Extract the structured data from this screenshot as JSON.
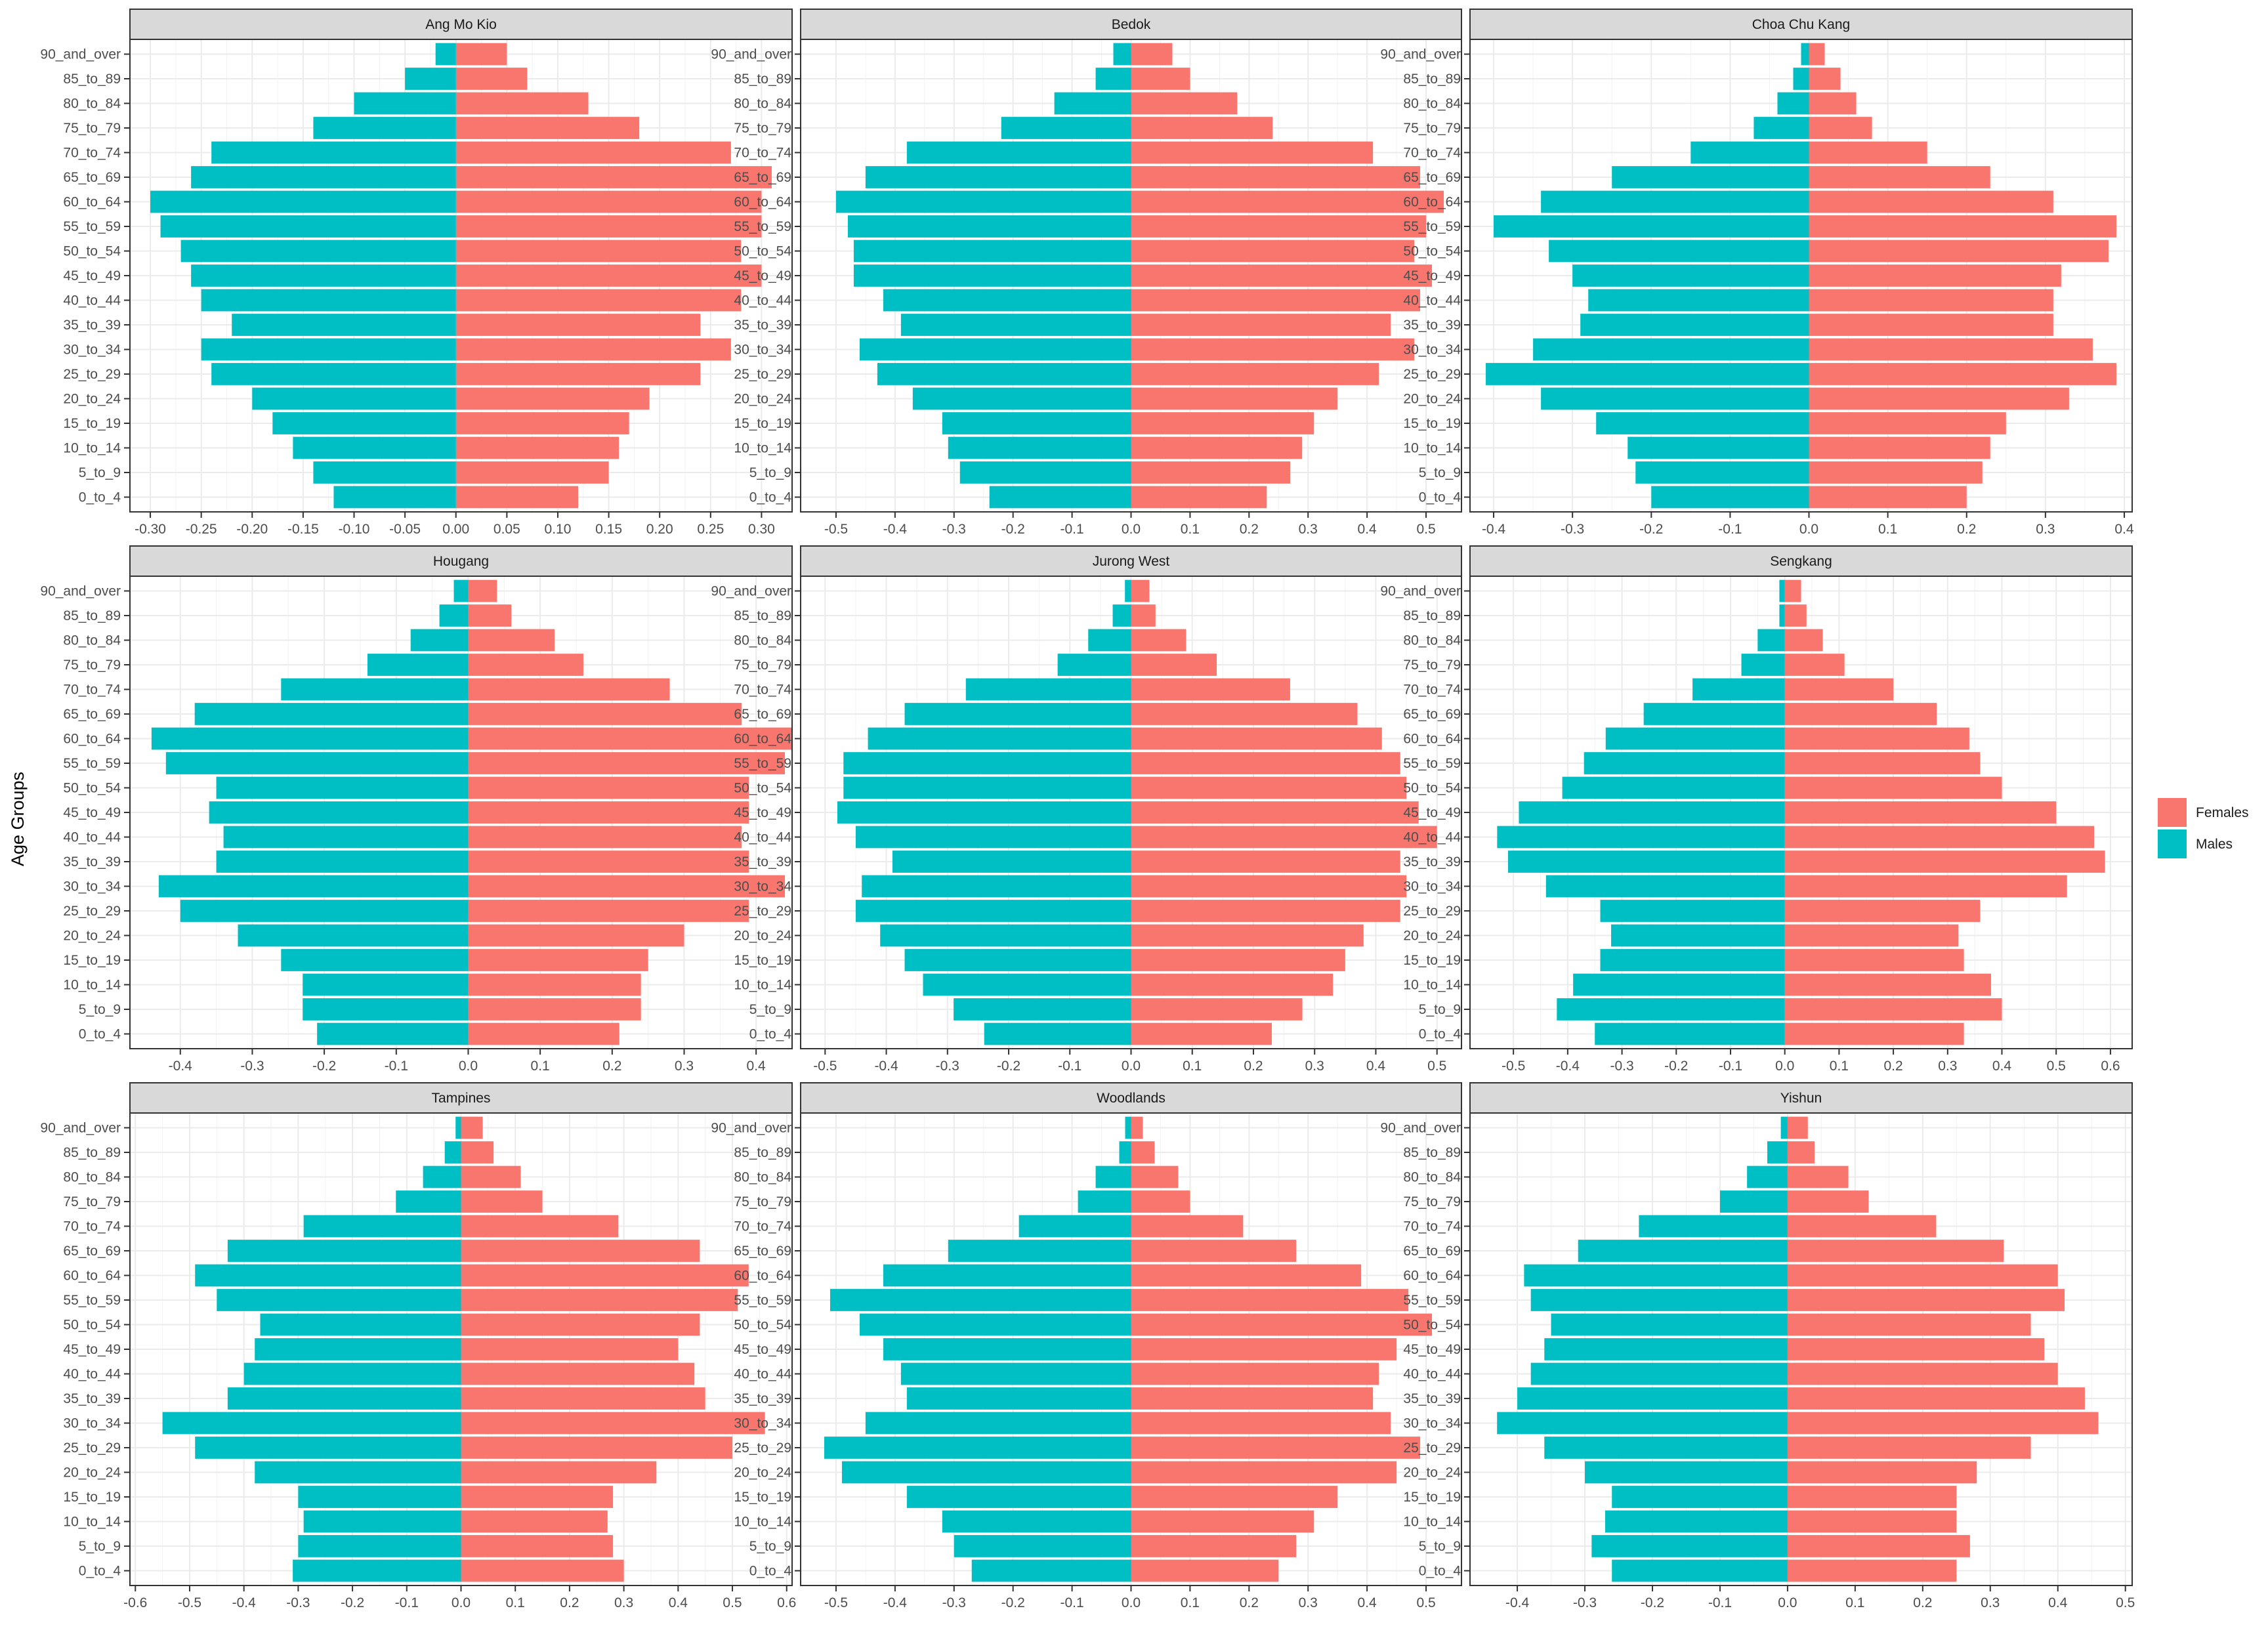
{
  "chart_data": {
    "type": "bar",
    "orientation": "horizontal-population-pyramid",
    "ylabel": "Age Groups",
    "categories": [
      "0_to_4",
      "5_to_9",
      "10_to_14",
      "15_to_19",
      "20_to_24",
      "25_to_29",
      "30_to_34",
      "35_to_39",
      "40_to_44",
      "45_to_49",
      "50_to_54",
      "55_to_59",
      "60_to_64",
      "65_to_69",
      "70_to_74",
      "75_to_79",
      "80_to_84",
      "85_to_89",
      "90_and_over"
    ],
    "legend": {
      "placement": "right",
      "items": [
        {
          "name": "Females",
          "color": "#F8766D"
        },
        {
          "name": "Males",
          "color": "#00BFC4"
        }
      ]
    },
    "grid": true,
    "panels": [
      {
        "title": "Ang Mo Kio",
        "xlim": [
          -0.32,
          0.33
        ],
        "xticks": [
          -0.3,
          -0.25,
          -0.2,
          -0.15,
          -0.1,
          -0.05,
          0.0,
          0.05,
          0.1,
          0.15,
          0.2,
          0.25,
          0.3
        ],
        "xtick_labels": [
          "-0.30",
          "-0.25",
          "-0.20",
          "-0.15",
          "-0.10",
          "-0.05",
          "0.00",
          "0.05",
          "0.10",
          "0.15",
          "0.20",
          "0.25",
          "0.30"
        ],
        "series": [
          {
            "name": "Females",
            "values": [
              0.12,
              0.15,
              0.16,
              0.17,
              0.19,
              0.24,
              0.27,
              0.24,
              0.28,
              0.3,
              0.28,
              0.3,
              0.3,
              0.31,
              0.27,
              0.18,
              0.13,
              0.07,
              0.05
            ]
          },
          {
            "name": "Males",
            "values": [
              -0.12,
              -0.14,
              -0.16,
              -0.18,
              -0.2,
              -0.24,
              -0.25,
              -0.22,
              -0.25,
              -0.26,
              -0.27,
              -0.29,
              -0.3,
              -0.26,
              -0.24,
              -0.14,
              -0.1,
              -0.05,
              -0.02
            ]
          }
        ]
      },
      {
        "title": "Bedok",
        "xlim": [
          -0.56,
          0.56
        ],
        "xticks": [
          -0.5,
          -0.4,
          -0.3,
          -0.2,
          -0.1,
          0.0,
          0.1,
          0.2,
          0.3,
          0.4,
          0.5
        ],
        "xtick_labels": [
          "-0.5",
          "-0.4",
          "-0.3",
          "-0.2",
          "-0.1",
          "0.0",
          "0.1",
          "0.2",
          "0.3",
          "0.4",
          "0.5"
        ],
        "series": [
          {
            "name": "Females",
            "values": [
              0.23,
              0.27,
              0.29,
              0.31,
              0.35,
              0.42,
              0.48,
              0.44,
              0.49,
              0.51,
              0.48,
              0.5,
              0.53,
              0.49,
              0.41,
              0.24,
              0.18,
              0.1,
              0.07
            ]
          },
          {
            "name": "Males",
            "values": [
              -0.24,
              -0.29,
              -0.31,
              -0.32,
              -0.37,
              -0.43,
              -0.46,
              -0.39,
              -0.42,
              -0.47,
              -0.47,
              -0.48,
              -0.5,
              -0.45,
              -0.38,
              -0.22,
              -0.13,
              -0.06,
              -0.03
            ]
          }
        ]
      },
      {
        "title": "Choa Chu Kang",
        "xlim": [
          -0.43,
          0.41
        ],
        "xticks": [
          -0.4,
          -0.3,
          -0.2,
          -0.1,
          0.0,
          0.1,
          0.2,
          0.3,
          0.4
        ],
        "xtick_labels": [
          "-0.4",
          "-0.3",
          "-0.2",
          "-0.1",
          "0.0",
          "0.1",
          "0.2",
          "0.3",
          "0.4"
        ],
        "series": [
          {
            "name": "Females",
            "values": [
              0.2,
              0.22,
              0.23,
              0.25,
              0.33,
              0.39,
              0.36,
              0.31,
              0.31,
              0.32,
              0.38,
              0.39,
              0.31,
              0.23,
              0.15,
              0.08,
              0.06,
              0.04,
              0.02
            ]
          },
          {
            "name": "Males",
            "values": [
              -0.2,
              -0.22,
              -0.23,
              -0.27,
              -0.34,
              -0.41,
              -0.35,
              -0.29,
              -0.28,
              -0.3,
              -0.33,
              -0.4,
              -0.34,
              -0.25,
              -0.15,
              -0.07,
              -0.04,
              -0.02,
              -0.01
            ]
          }
        ]
      },
      {
        "title": "Hougang",
        "xlim": [
          -0.47,
          0.45
        ],
        "xticks": [
          -0.4,
          -0.3,
          -0.2,
          -0.1,
          0.0,
          0.1,
          0.2,
          0.3,
          0.4
        ],
        "xtick_labels": [
          "-0.4",
          "-0.3",
          "-0.2",
          "-0.1",
          "0.0",
          "0.1",
          "0.2",
          "0.3",
          "0.4"
        ],
        "series": [
          {
            "name": "Females",
            "values": [
              0.21,
              0.24,
              0.24,
              0.25,
              0.3,
              0.39,
              0.44,
              0.39,
              0.38,
              0.39,
              0.39,
              0.44,
              0.45,
              0.38,
              0.28,
              0.16,
              0.12,
              0.06,
              0.04
            ]
          },
          {
            "name": "Males",
            "values": [
              -0.21,
              -0.23,
              -0.23,
              -0.26,
              -0.32,
              -0.4,
              -0.43,
              -0.35,
              -0.34,
              -0.36,
              -0.35,
              -0.42,
              -0.44,
              -0.38,
              -0.26,
              -0.14,
              -0.08,
              -0.04,
              -0.02
            ]
          }
        ]
      },
      {
        "title": "Jurong West",
        "xlim": [
          -0.54,
          0.54
        ],
        "xticks": [
          -0.5,
          -0.4,
          -0.3,
          -0.2,
          -0.1,
          0.0,
          0.1,
          0.2,
          0.3,
          0.4,
          0.5
        ],
        "xtick_labels": [
          "-0.5",
          "-0.4",
          "-0.3",
          "-0.2",
          "-0.1",
          "0.0",
          "0.1",
          "0.2",
          "0.3",
          "0.4",
          "0.5"
        ],
        "series": [
          {
            "name": "Females",
            "values": [
              0.23,
              0.28,
              0.33,
              0.35,
              0.38,
              0.44,
              0.45,
              0.44,
              0.5,
              0.47,
              0.45,
              0.44,
              0.41,
              0.37,
              0.26,
              0.14,
              0.09,
              0.04,
              0.03
            ]
          },
          {
            "name": "Males",
            "values": [
              -0.24,
              -0.29,
              -0.34,
              -0.37,
              -0.41,
              -0.45,
              -0.44,
              -0.39,
              -0.45,
              -0.48,
              -0.47,
              -0.47,
              -0.43,
              -0.37,
              -0.27,
              -0.12,
              -0.07,
              -0.03,
              -0.01
            ]
          }
        ]
      },
      {
        "title": "Sengkang",
        "xlim": [
          -0.58,
          0.64
        ],
        "xticks": [
          -0.5,
          -0.4,
          -0.3,
          -0.2,
          -0.1,
          0.0,
          0.1,
          0.2,
          0.3,
          0.4,
          0.5,
          0.6
        ],
        "xtick_labels": [
          "-0.5",
          "-0.4",
          "-0.3",
          "-0.2",
          "-0.1",
          "0.0",
          "0.1",
          "0.2",
          "0.3",
          "0.4",
          "0.5",
          "0.6"
        ],
        "series": [
          {
            "name": "Females",
            "values": [
              0.33,
              0.4,
              0.38,
              0.33,
              0.32,
              0.36,
              0.52,
              0.59,
              0.57,
              0.5,
              0.4,
              0.36,
              0.34,
              0.28,
              0.2,
              0.11,
              0.07,
              0.04,
              0.03
            ]
          },
          {
            "name": "Males",
            "values": [
              -0.35,
              -0.42,
              -0.39,
              -0.34,
              -0.32,
              -0.34,
              -0.44,
              -0.51,
              -0.53,
              -0.49,
              -0.41,
              -0.37,
              -0.33,
              -0.26,
              -0.17,
              -0.08,
              -0.05,
              -0.01,
              -0.01
            ]
          }
        ]
      },
      {
        "title": "Tampines",
        "xlim": [
          -0.61,
          0.61
        ],
        "xticks": [
          -0.6,
          -0.5,
          -0.4,
          -0.3,
          -0.2,
          -0.1,
          0.0,
          0.1,
          0.2,
          0.3,
          0.4,
          0.5,
          0.6
        ],
        "xtick_labels": [
          "-0.6",
          "-0.5",
          "-0.4",
          "-0.3",
          "-0.2",
          "-0.1",
          "0.0",
          "0.1",
          "0.2",
          "0.3",
          "0.4",
          "0.5",
          "0.6"
        ],
        "series": [
          {
            "name": "Females",
            "values": [
              0.3,
              0.28,
              0.27,
              0.28,
              0.36,
              0.5,
              0.56,
              0.45,
              0.43,
              0.4,
              0.44,
              0.51,
              0.53,
              0.44,
              0.29,
              0.15,
              0.11,
              0.06,
              0.04
            ]
          },
          {
            "name": "Males",
            "values": [
              -0.31,
              -0.3,
              -0.29,
              -0.3,
              -0.38,
              -0.49,
              -0.55,
              -0.43,
              -0.4,
              -0.38,
              -0.37,
              -0.45,
              -0.49,
              -0.43,
              -0.29,
              -0.12,
              -0.07,
              -0.03,
              -0.01
            ]
          }
        ]
      },
      {
        "title": "Woodlands",
        "xlim": [
          -0.56,
          0.56
        ],
        "xticks": [
          -0.5,
          -0.4,
          -0.3,
          -0.2,
          -0.1,
          0.0,
          0.1,
          0.2,
          0.3,
          0.4,
          0.5
        ],
        "xtick_labels": [
          "-0.5",
          "-0.4",
          "-0.3",
          "-0.2",
          "-0.1",
          "0.0",
          "0.1",
          "0.2",
          "0.3",
          "0.4",
          "0.5"
        ],
        "series": [
          {
            "name": "Females",
            "values": [
              0.25,
              0.28,
              0.31,
              0.35,
              0.45,
              0.49,
              0.44,
              0.41,
              0.42,
              0.45,
              0.51,
              0.47,
              0.39,
              0.28,
              0.19,
              0.1,
              0.08,
              0.04,
              0.02
            ]
          },
          {
            "name": "Males",
            "values": [
              -0.27,
              -0.3,
              -0.32,
              -0.38,
              -0.49,
              -0.52,
              -0.45,
              -0.38,
              -0.39,
              -0.42,
              -0.46,
              -0.51,
              -0.42,
              -0.31,
              -0.19,
              -0.09,
              -0.06,
              -0.02,
              -0.01
            ]
          }
        ]
      },
      {
        "title": "Yishun",
        "xlim": [
          -0.47,
          0.51
        ],
        "xticks": [
          -0.4,
          -0.3,
          -0.2,
          -0.1,
          0.0,
          0.1,
          0.2,
          0.3,
          0.4,
          0.5
        ],
        "xtick_labels": [
          "-0.4",
          "-0.3",
          "-0.2",
          "-0.1",
          "0.0",
          "0.1",
          "0.2",
          "0.3",
          "0.4",
          "0.5"
        ],
        "series": [
          {
            "name": "Females",
            "values": [
              0.25,
              0.27,
              0.25,
              0.25,
              0.28,
              0.36,
              0.46,
              0.44,
              0.4,
              0.38,
              0.36,
              0.41,
              0.4,
              0.32,
              0.22,
              0.12,
              0.09,
              0.04,
              0.03
            ]
          },
          {
            "name": "Males",
            "values": [
              -0.26,
              -0.29,
              -0.27,
              -0.26,
              -0.3,
              -0.36,
              -0.43,
              -0.4,
              -0.38,
              -0.36,
              -0.35,
              -0.38,
              -0.39,
              -0.31,
              -0.22,
              -0.1,
              -0.06,
              -0.03,
              -0.01
            ]
          }
        ]
      }
    ]
  }
}
